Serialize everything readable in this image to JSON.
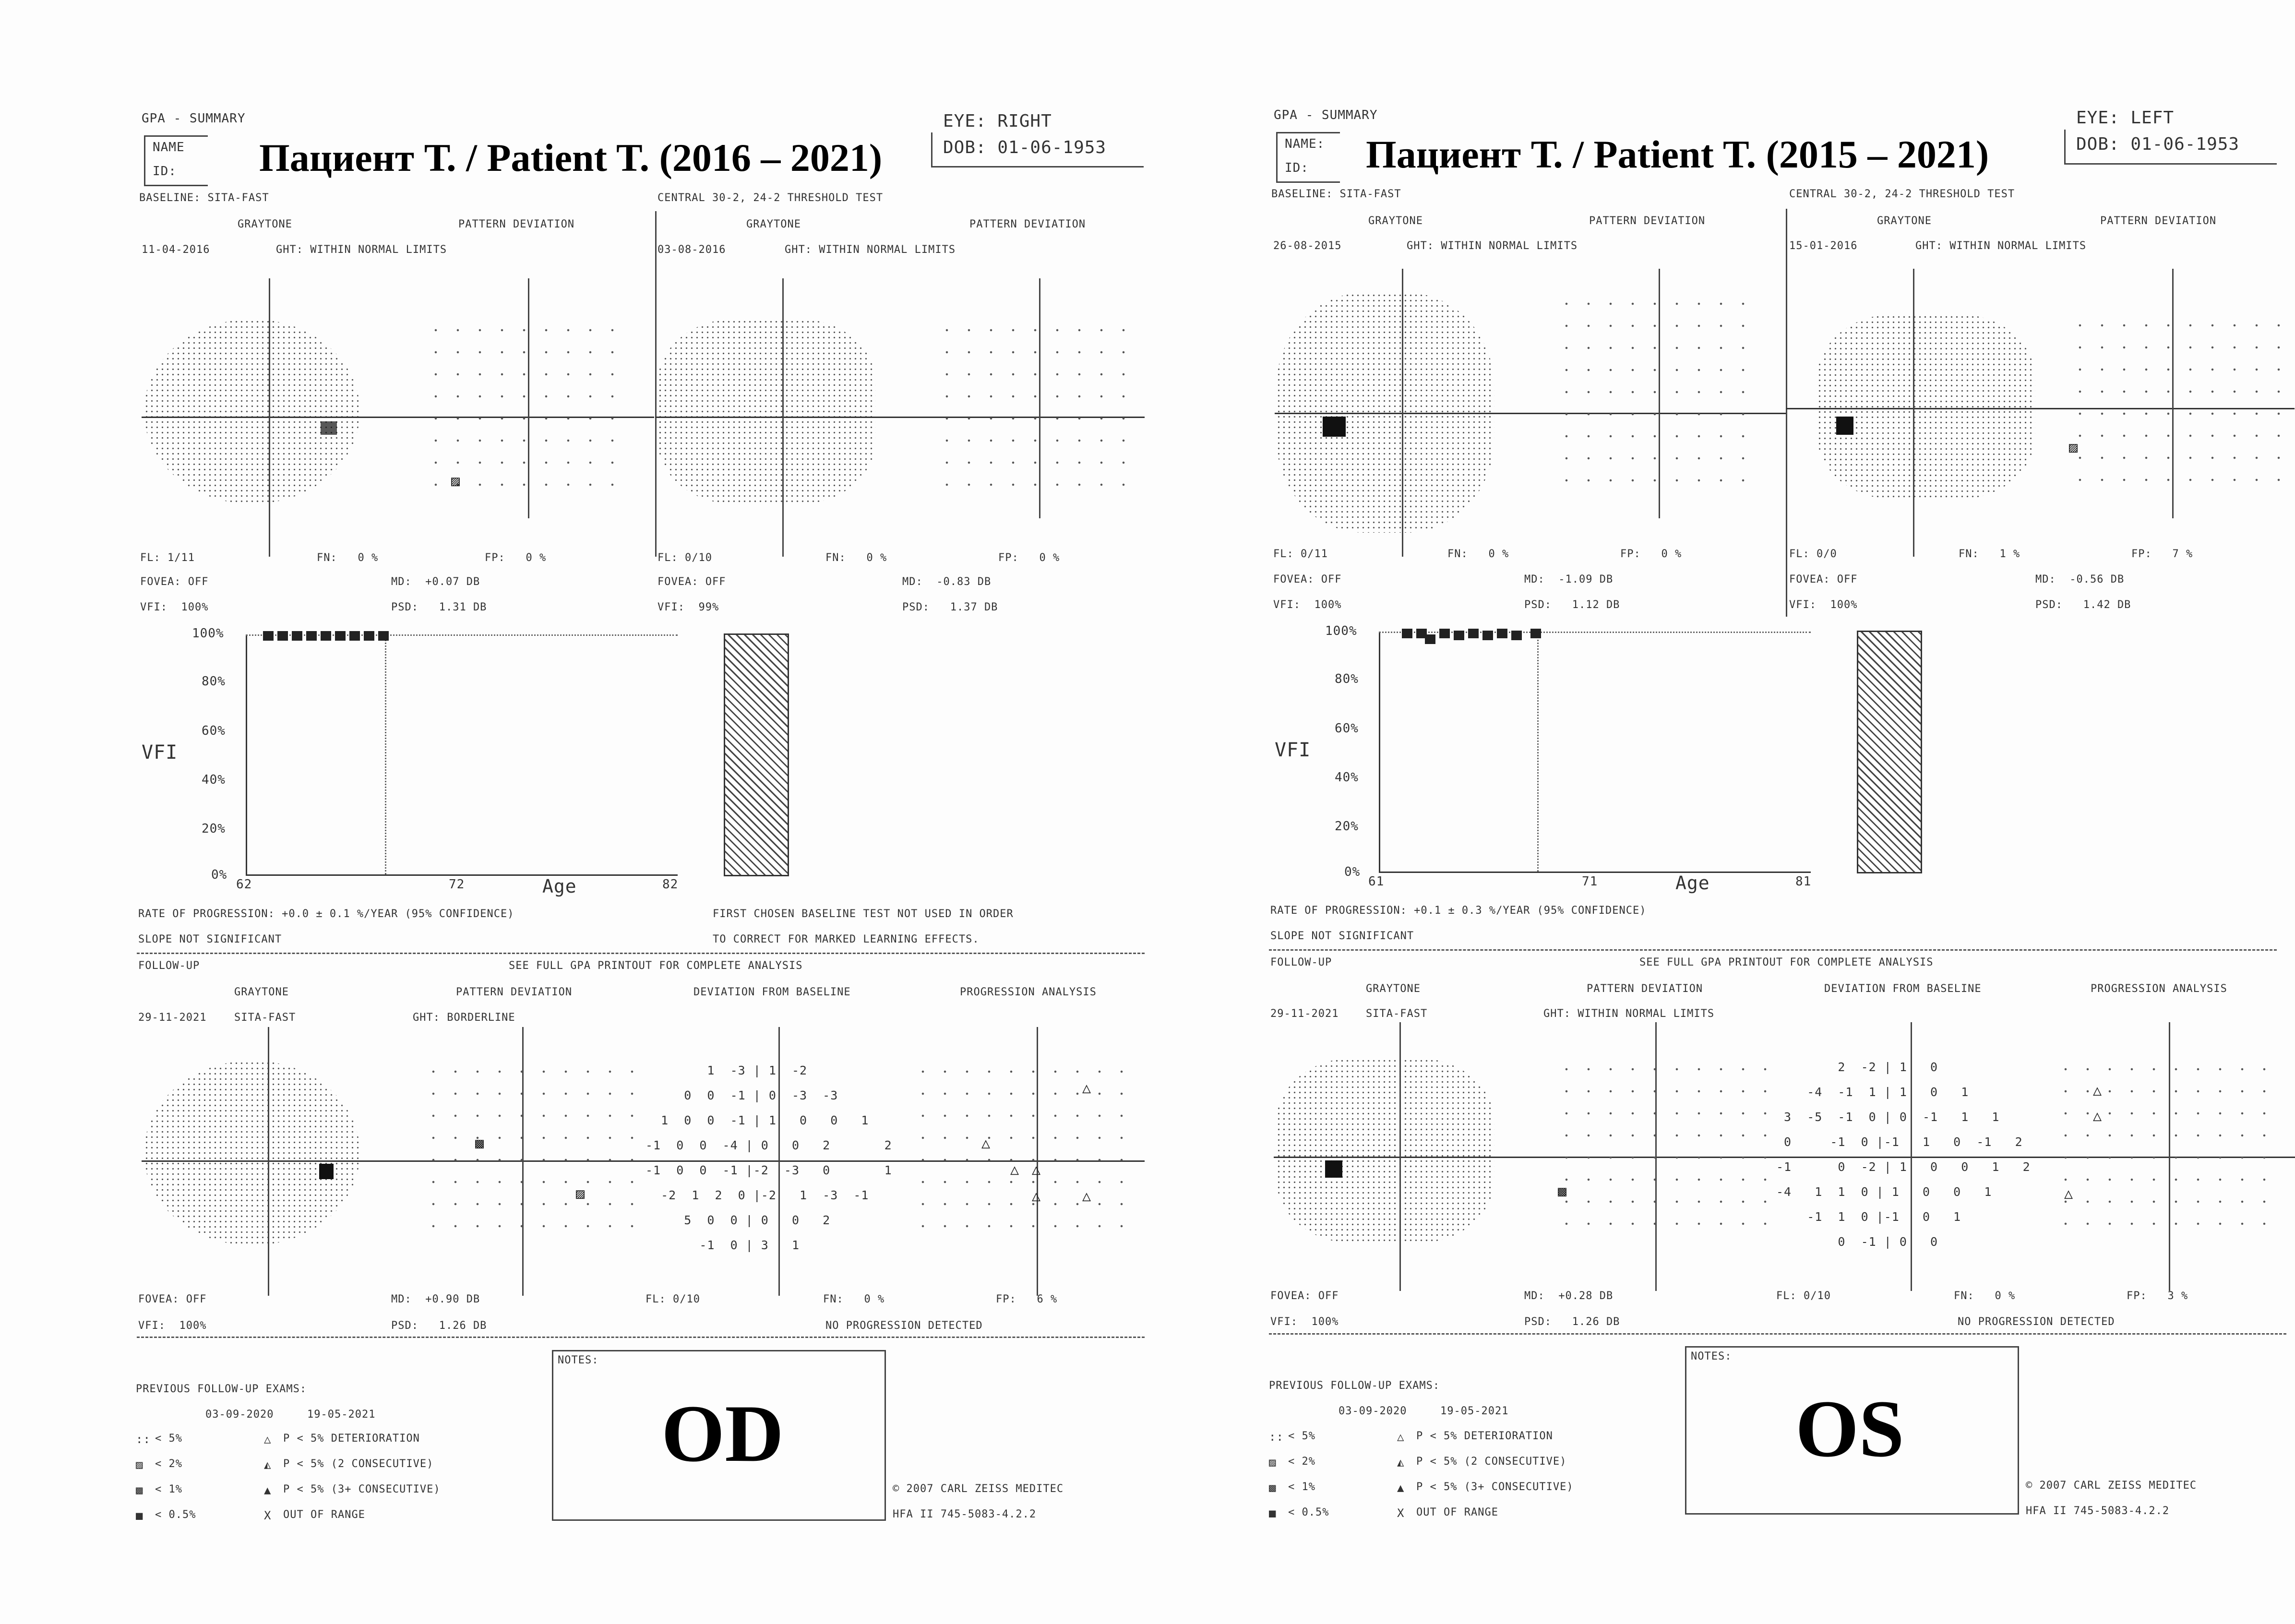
{
  "od": {
    "title": "Пациент Т. / Patient T. (2016 – 2021)",
    "eye_label": "OD",
    "header": {
      "report": "GPA - SUMMARY",
      "name": "NAME",
      "id": "ID:",
      "eye": "EYE: RIGHT",
      "dob": "DOB: 01-06-1953"
    },
    "baseline_label": "BASELINE: SITA-FAST",
    "test_label": "CENTRAL 30-2, 24-2 THRESHOLD TEST",
    "baseline1": {
      "graytone": "GRAYTONE",
      "pattern": "PATTERN DEVIATION",
      "date": "11-04-2016",
      "ght": "GHT: WITHIN NORMAL LIMITS",
      "fl": "FL: 1/11",
      "fn": "FN:   0 %",
      "fp": "FP:   0 %",
      "fovea": "FOVEA: OFF",
      "vfi": "VFI:  100%",
      "md": "MD:  +0.07 DB",
      "psd": "PSD:   1.31 DB"
    },
    "baseline2": {
      "graytone": "GRAYTONE",
      "pattern": "PATTERN DEVIATION",
      "date": "03-08-2016",
      "ght": "GHT: WITHIN NORMAL LIMITS",
      "fl": "FL: 0/10",
      "fn": "FN:   0 %",
      "fp": "FP:   0 %",
      "fovea": "FOVEA: OFF",
      "vfi": "VFI:  99%",
      "md": "MD:  -0.83 DB",
      "psd": "PSD:   1.37 DB"
    },
    "chart": {
      "ylabel": "VFI",
      "yticks": [
        "100%",
        "80%",
        "60%",
        "40%",
        "20%",
        "0%"
      ],
      "xticks": [
        "62",
        "72",
        "82"
      ],
      "xlabel": "Age"
    },
    "rate": "RATE OF PROGRESSION: +0.0 ± 0.1 %/YEAR (95% CONFIDENCE)",
    "slope": "SLOPE NOT SIGNIFICANT",
    "note1": "FIRST CHOSEN BASELINE TEST NOT USED IN ORDER",
    "note2": "TO CORRECT FOR MARKED LEARNING EFFECTS.",
    "followup": {
      "label": "FOLLOW-UP",
      "see": "SEE FULL GPA PRINTOUT FOR COMPLETE ANALYSIS",
      "graytone": "GRAYTONE",
      "pattern": "PATTERN DEVIATION",
      "deviation": "DEVIATION FROM BASELINE",
      "progression": "PROGRESSION ANALYSIS",
      "date": "29-11-2021",
      "strategy": "SITA-FAST",
      "ght": "GHT: BORDERLINE",
      "fovea": "FOVEA: OFF",
      "vfi": "VFI:  100%",
      "md": "MD:  +0.90 DB",
      "psd": "PSD:   1.26 DB",
      "fl": "FL: 0/10",
      "fn": "FN:   0 %",
      "fp": "FP:   6 %",
      "result": "NO PROGRESSION DETECTED"
    },
    "deviation_rows": [
      "        1  -3 | 1  -2",
      "     0  0  -1 | 0  -3  -3",
      "  1  0  0  -1 | 1   0   0   1",
      "-1  0  0  -4 | 0   0   2       2",
      "-1  0  0  -1 |-2  -3   0       1",
      "  -2  1  2  0 |-2   1  -3  -1",
      "     5  0  0 | 0   0   2",
      "       -1  0 | 3   1"
    ],
    "prev": {
      "label": "PREVIOUS FOLLOW-UP EXAMS:",
      "date1": "03-09-2020",
      "date2": "19-05-2021"
    },
    "legend": [
      {
        "sym": "::",
        "text": "< 5%"
      },
      {
        "sym": "▨",
        "text": "< 2%"
      },
      {
        "sym": "▩",
        "text": "< 1%"
      },
      {
        "sym": "■",
        "text": "< 0.5%"
      }
    ],
    "legend2": [
      {
        "sym": "△",
        "text": "P < 5% DETERIORATION"
      },
      {
        "sym": "◭",
        "text": "P < 5% (2 CONSECUTIVE)"
      },
      {
        "sym": "▲",
        "text": "P < 5% (3+ CONSECUTIVE)"
      },
      {
        "sym": "X",
        "text": "OUT OF RANGE"
      }
    ],
    "notes": "NOTES:",
    "copyright": "© 2007 CARL ZEISS MEDITEC",
    "model": "HFA II 745-5083-4.2.2"
  },
  "os": {
    "title": "Пациент Т. / Patient T. (2015 – 2021)",
    "eye_label": "OS",
    "header": {
      "report": "GPA - SUMMARY",
      "name": "NAME:",
      "id": "ID:",
      "eye": "EYE: LEFT",
      "dob": "DOB: 01-06-1953"
    },
    "baseline_label": "BASELINE: SITA-FAST",
    "test_label": "CENTRAL 30-2, 24-2 THRESHOLD TEST",
    "baseline1": {
      "graytone": "GRAYTONE",
      "pattern": "PATTERN DEVIATION",
      "date": "26-08-2015",
      "ght": "GHT: WITHIN NORMAL LIMITS",
      "fl": "FL: 0/11",
      "fn": "FN:   0 %",
      "fp": "FP:   0 %",
      "fovea": "FOVEA: OFF",
      "vfi": "VFI:  100%",
      "md": "MD:  -1.09 DB",
      "psd": "PSD:   1.12 DB"
    },
    "baseline2": {
      "graytone": "GRAYTONE",
      "pattern": "PATTERN DEVIATION",
      "date": "15-01-2016",
      "ght": "GHT: WITHIN NORMAL LIMITS",
      "fl": "FL: 0/0",
      "fn": "FN:   1 %",
      "fp": "FP:   7 %",
      "fovea": "FOVEA: OFF",
      "vfi": "VFI:  100%",
      "md": "MD:  -0.56 DB",
      "psd": "PSD:   1.42 DB"
    },
    "chart": {
      "ylabel": "VFI",
      "yticks": [
        "100%",
        "80%",
        "60%",
        "40%",
        "20%",
        "0%"
      ],
      "xticks": [
        "61",
        "71",
        "81"
      ],
      "xlabel": "Age"
    },
    "rate": "RATE OF PROGRESSION: +0.1 ± 0.3 %/YEAR (95% CONFIDENCE)",
    "slope": "SLOPE NOT SIGNIFICANT",
    "followup": {
      "label": "FOLLOW-UP",
      "see": "SEE FULL GPA PRINTOUT FOR COMPLETE ANALYSIS",
      "graytone": "GRAYTONE",
      "pattern": "PATTERN DEVIATION",
      "deviation": "DEVIATION FROM BASELINE",
      "progression": "PROGRESSION ANALYSIS",
      "date": "29-11-2021",
      "strategy": "SITA-FAST",
      "ght": "GHT: WITHIN NORMAL LIMITS",
      "fovea": "FOVEA: OFF",
      "vfi": "VFI:  100%",
      "md": "MD:  +0.28 DB",
      "psd": "PSD:   1.26 DB",
      "fl": "FL: 0/10",
      "fn": "FN:   0 %",
      "fp": "FP:   3 %",
      "result": "NO PROGRESSION DETECTED"
    },
    "deviation_rows": [
      "        2  -2 | 1   0",
      "    -4  -1  1 | 1   0   1",
      " 3  -5  -1  0 | 0  -1   1   1",
      " 0     -1  0 |-1   1   0  -1   2",
      "-1      0  -2 | 1   0   0   1   2",
      "-4   1  1  0 | 1   0   0   1",
      "    -1  1  0 |-1   0   1",
      "        0  -1 | 0   0"
    ],
    "prev": {
      "label": "PREVIOUS FOLLOW-UP EXAMS:",
      "date1": "03-09-2020",
      "date2": "19-05-2021"
    },
    "legend": [
      {
        "sym": "::",
        "text": "< 5%"
      },
      {
        "sym": "▨",
        "text": "< 2%"
      },
      {
        "sym": "▩",
        "text": "< 1%"
      },
      {
        "sym": "■",
        "text": "< 0.5%"
      }
    ],
    "legend2": [
      {
        "sym": "△",
        "text": "P < 5% DETERIORATION"
      },
      {
        "sym": "◭",
        "text": "P < 5% (2 CONSECUTIVE)"
      },
      {
        "sym": "▲",
        "text": "P < 5% (3+ CONSECUTIVE)"
      },
      {
        "sym": "X",
        "text": "OUT OF RANGE"
      }
    ],
    "notes": "NOTES:",
    "copyright": "© 2007 CARL ZEISS MEDITEC",
    "model": "HFA II 745-5083-4.2.2"
  }
}
